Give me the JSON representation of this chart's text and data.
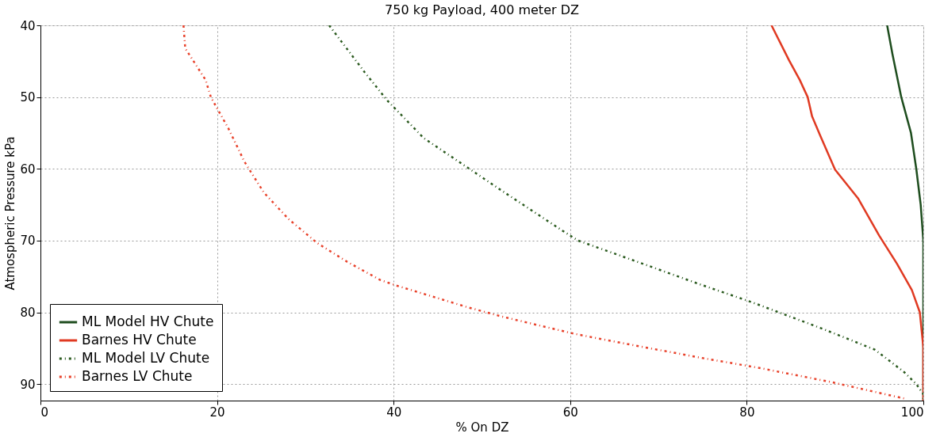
{
  "chart_data": {
    "type": "line",
    "title": "750 kg Payload, 400 meter DZ",
    "xlabel": "% On DZ",
    "ylabel": "Atmospheric Pressure kPa",
    "xlim": [
      0,
      100
    ],
    "xticks": [
      0,
      20,
      40,
      60,
      80,
      100
    ],
    "ylim": [
      92.3,
      40
    ],
    "yticks": [
      40,
      50,
      60,
      70,
      80,
      90
    ],
    "grid": true,
    "legend": "bottom left",
    "series": [
      {
        "name": "ML Model HV Chute",
        "color": "#1e4d1e",
        "line_style": "solid",
        "x": [
          95.9,
          96.5,
          97.5,
          98.6,
          99.2,
          99.7,
          100,
          100,
          100
        ],
        "values": [
          40,
          44,
          50,
          55,
          60,
          65,
          70,
          80,
          92.3
        ]
      },
      {
        "name": "Barnes HV Chute",
        "color": "#e03a22",
        "line_style": "solid",
        "x": [
          82.8,
          84.8,
          86.0,
          86.9,
          87.4,
          88.3,
          90.0,
          92.6,
          95.0,
          97.0,
          98.7,
          99.6,
          100,
          100
        ],
        "values": [
          40,
          44.9,
          47.6,
          50,
          52.7,
          55.3,
          60.1,
          64.1,
          69.3,
          73.2,
          76.9,
          80,
          84.9,
          92.3
        ]
      },
      {
        "name": "ML Model LV Chute",
        "color": "#2a5a1e",
        "line_style": "dotted",
        "x": [
          32.7,
          36.7,
          39.3,
          43.4,
          52.2,
          59.1,
          60.9,
          66.8,
          74.7,
          80.6,
          88.6,
          94.5,
          97.8,
          99.2,
          100,
          100
        ],
        "values": [
          40,
          46.5,
          50.5,
          55.7,
          63.0,
          68.6,
          70.0,
          72.6,
          76.1,
          78.6,
          82.3,
          85.2,
          88.3,
          90,
          91.4,
          92.3
        ]
      },
      {
        "name": "Barnes LV Chute",
        "color": "#e8412a",
        "line_style": "dotted",
        "x": [
          16.2,
          16.4,
          18.7,
          19.3,
          21.3,
          23.1,
          25.3,
          28.1,
          31.3,
          34.8,
          38.5,
          40.4,
          48.4,
          52.3,
          60.5,
          66.8,
          75.1,
          81.2,
          89.5,
          97.8
        ],
        "values": [
          40,
          43.2,
          47.6,
          50,
          54.4,
          59.0,
          63.3,
          67.0,
          70.3,
          73.0,
          75.5,
          76.3,
          79.3,
          80.6,
          83.0,
          84.5,
          86.4,
          87.7,
          89.7,
          92.0
        ]
      }
    ]
  }
}
